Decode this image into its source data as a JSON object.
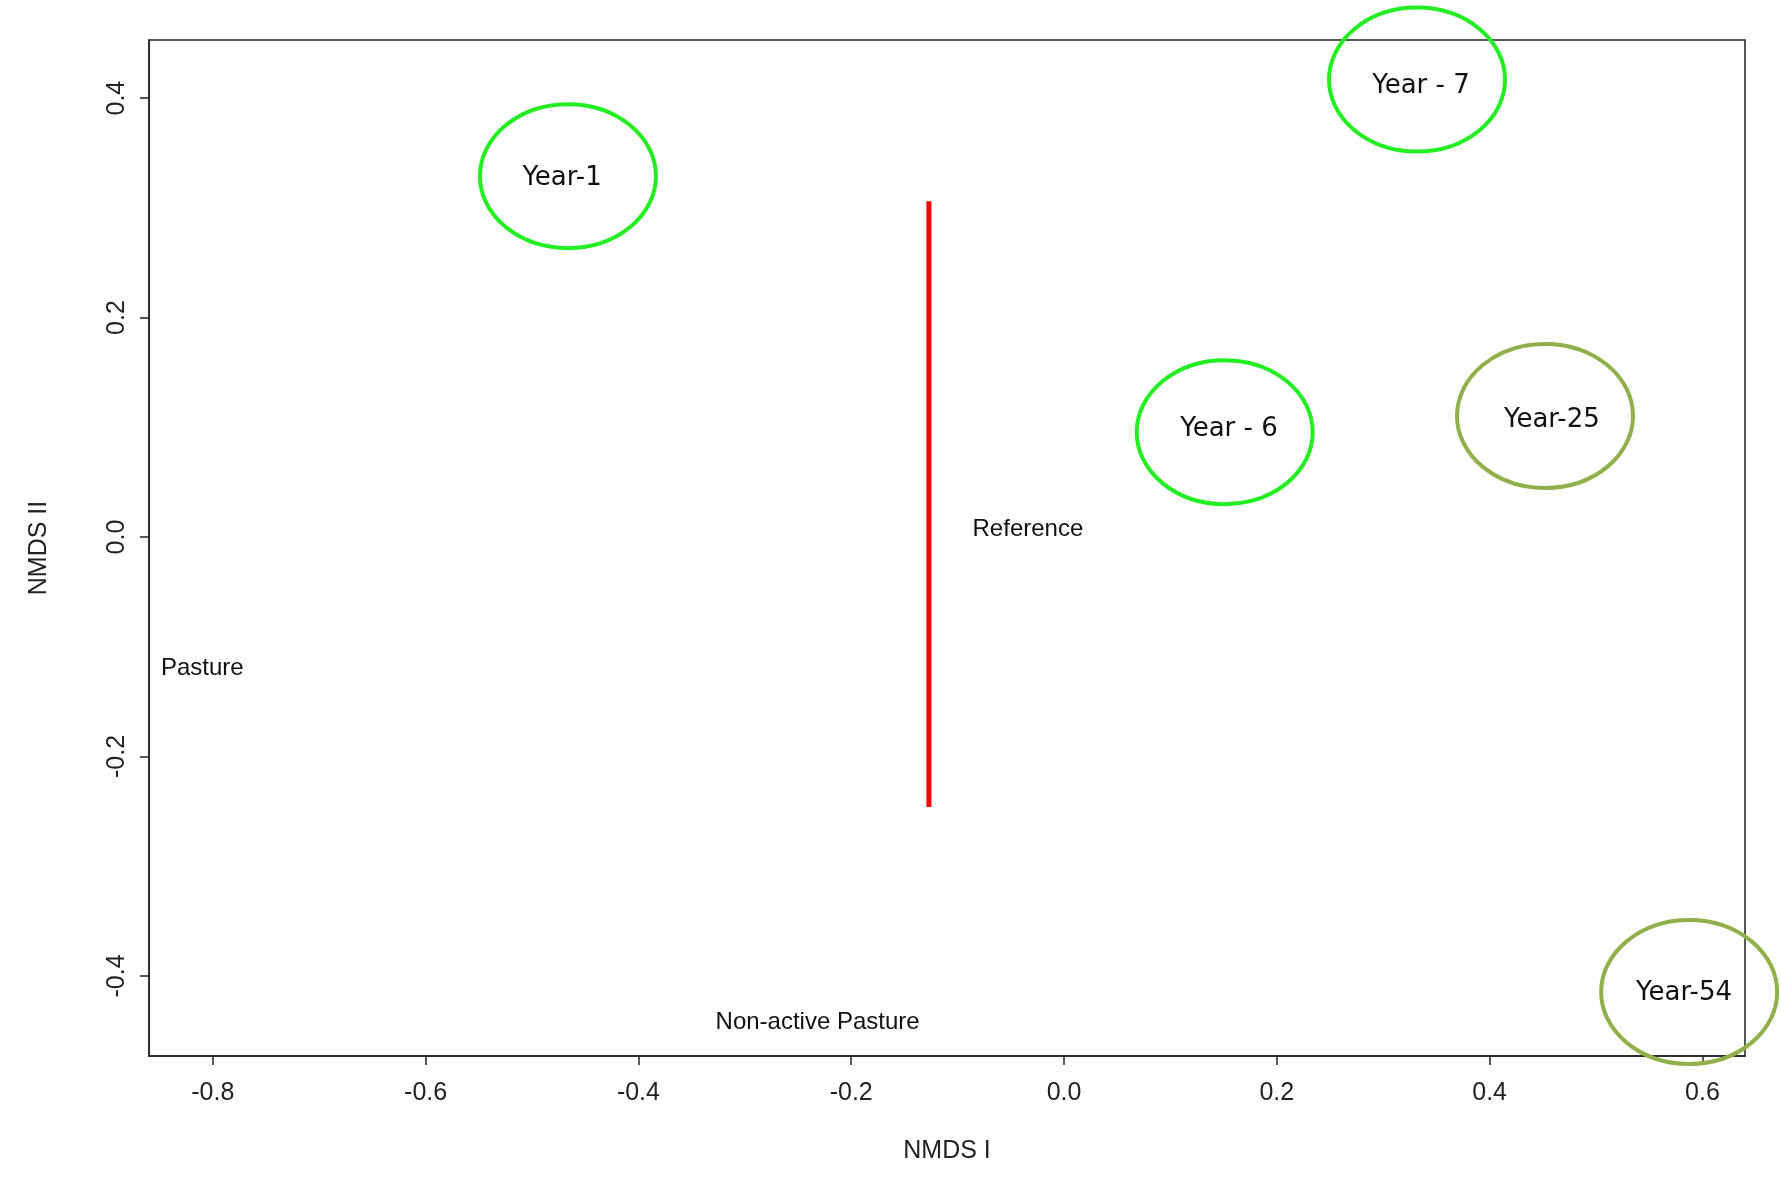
{
  "chart_data": {
    "type": "line",
    "xlabel": "NMDS I",
    "ylabel": "NMDS II",
    "xlim": [
      -0.86,
      0.64
    ],
    "ylim": [
      -0.473,
      0.453
    ],
    "xticks": [
      -0.8,
      -0.6,
      -0.4,
      -0.2,
      {
        "value": 0,
        "label": "0.0"
      },
      0.2,
      0.4,
      0.6
    ],
    "yticks": [
      -0.4,
      -0.2,
      {
        "value": 0,
        "label": "0.0"
      },
      0.2,
      0.4
    ],
    "marker": "none",
    "series": [
      {
        "color": "#ff0000",
        "x": [
          -0.127,
          -0.127
        ],
        "values": [
          0.306,
          -0.246
        ]
      }
    ],
    "annotations": [
      "Year-1",
      "Year - 7",
      "Year - 6",
      "Year-25",
      "Year-54",
      "Reference",
      "Pasture",
      "Non-active Pasture"
    ]
  }
}
